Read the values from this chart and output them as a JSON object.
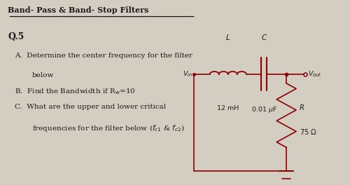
{
  "title": "Band- Pass & Band- Stop Filters",
  "question_number": "Q.5",
  "item_A_line1": "A.  Determine the center frequency for the filter",
  "item_A_line2": "     below",
  "item_B": "B.  Find the Bandwidth if Rw=10",
  "item_C_line1": "C.  What are the upper and lower critical",
  "item_C_line2": "     frequencies for the filter below (fc1 & fc2)",
  "circuit_L_label": "L",
  "circuit_C_label": "C",
  "circuit_Vin_label": "Vin",
  "circuit_Vout_label": "Vout",
  "circuit_L_value": "12 mH",
  "circuit_C_value": "0.01 uF",
  "circuit_R_label": "R",
  "circuit_R_value": "75 O",
  "bg_color": "#d4cdc2",
  "text_color": "#1a1a1a",
  "circuit_color": "#8B0000"
}
